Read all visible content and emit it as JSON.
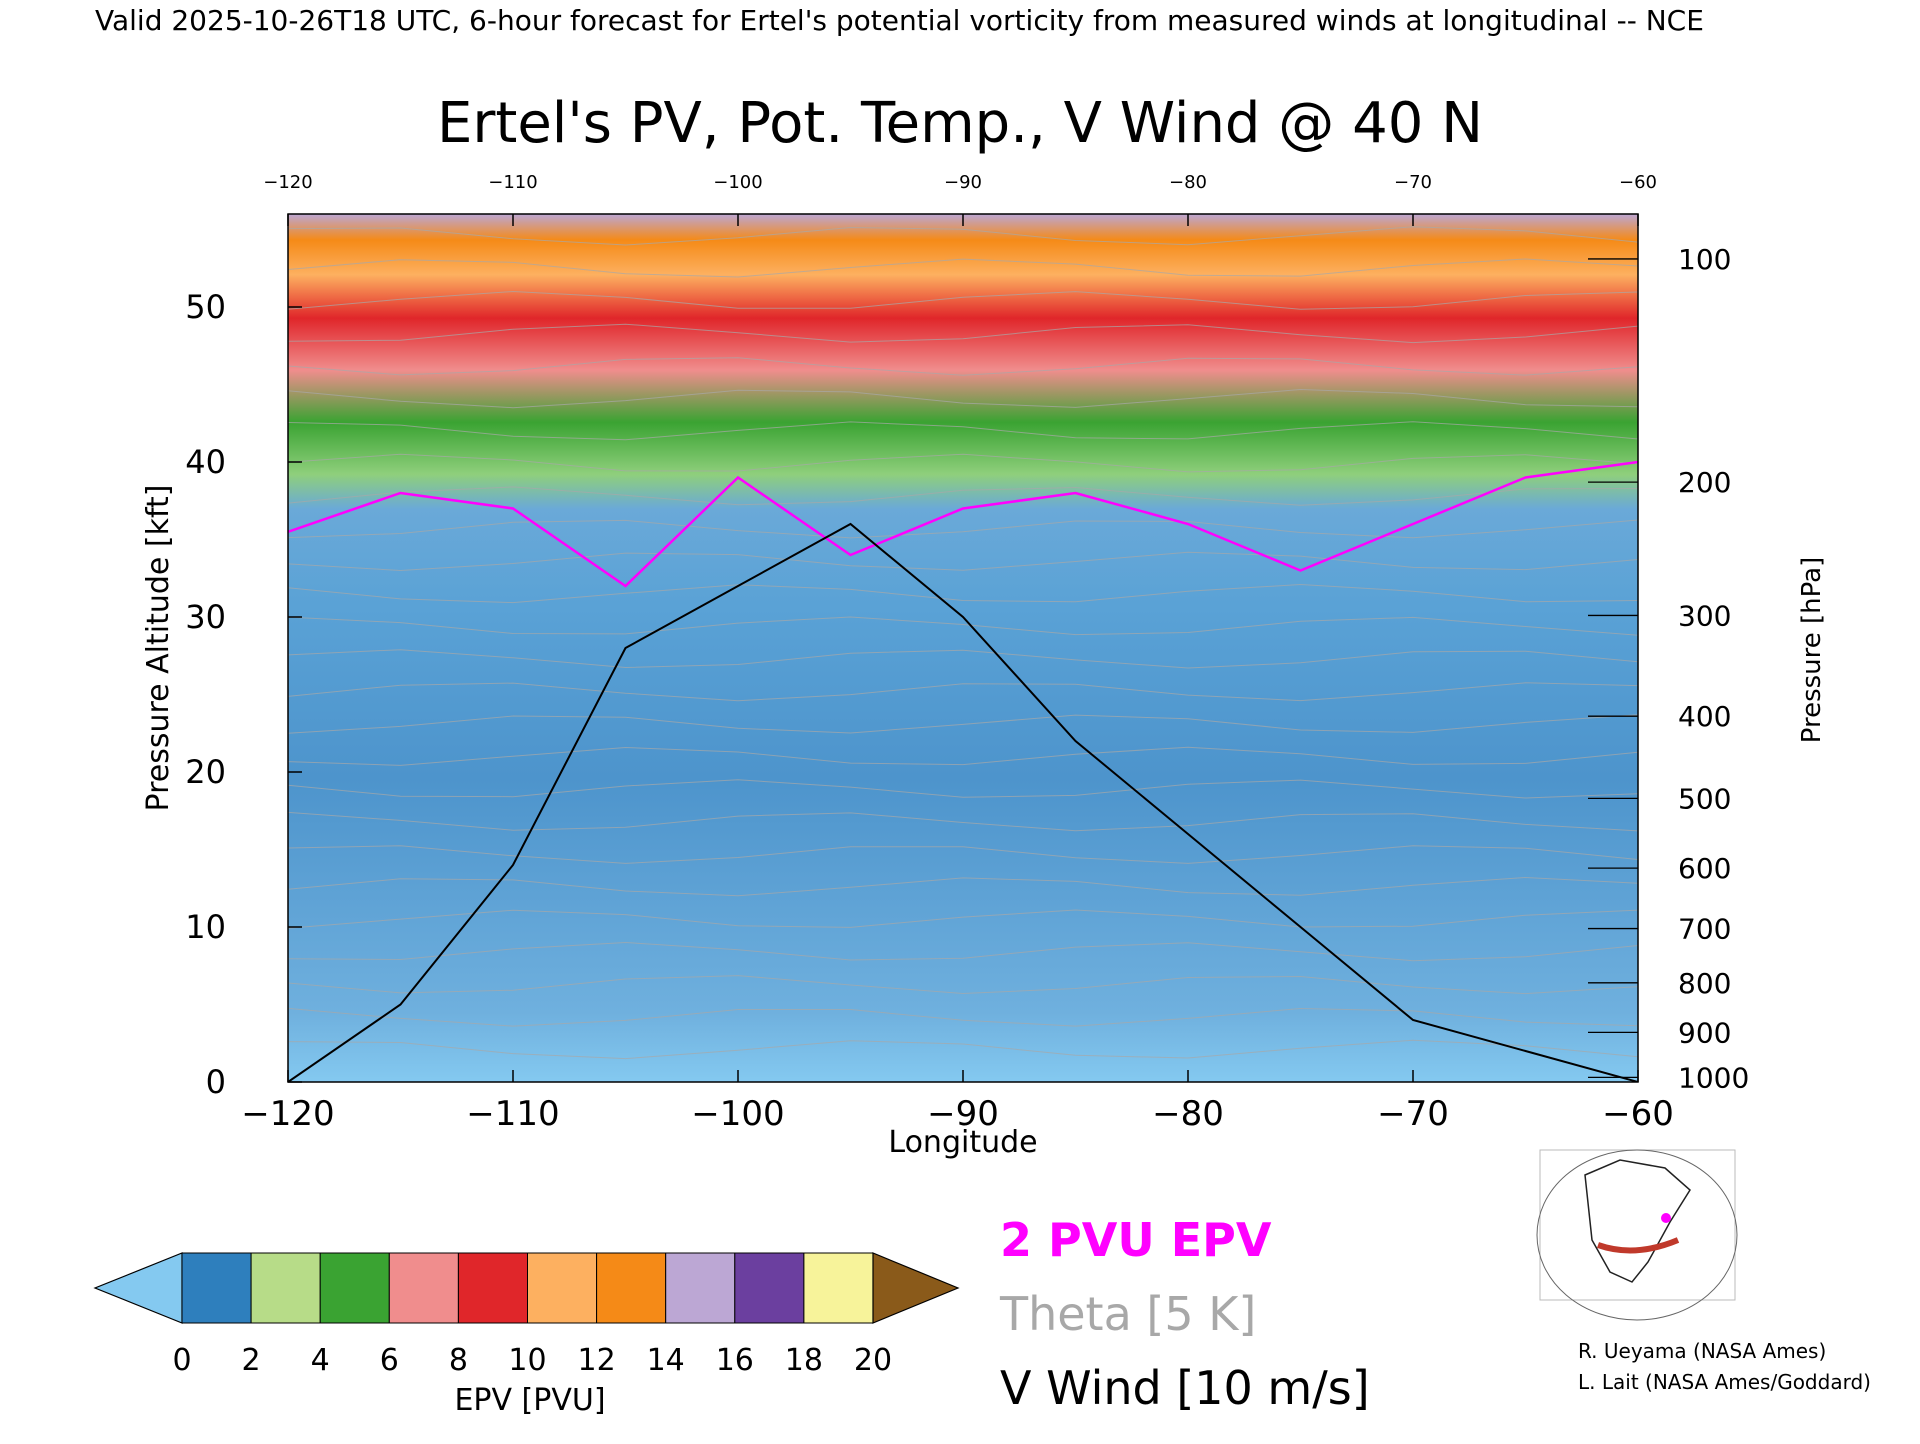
{
  "header": "Valid 2025-10-26T18 UTC, 6-hour forecast for Ertel's potential vorticity from measured winds at longitudinal -- NCE",
  "chart_data": {
    "type": "heatmap",
    "title": "Ertel's PV, Pot. Temp., V Wind @ 40 N",
    "xlabel": "Longitude",
    "ylabel_left": "Pressure Altitude [kft]",
    "ylabel_right": "Pressure [hPa]",
    "xlim": [
      -120,
      -60
    ],
    "ylim_kft": [
      0,
      56
    ],
    "x_ticks": [
      "−120",
      "−110",
      "−100",
      "−90",
      "−80",
      "−70",
      "−60"
    ],
    "x_tick_values": [
      -120,
      -110,
      -100,
      -90,
      -80,
      -70,
      -60
    ],
    "y_ticks_kft": [
      0,
      10,
      20,
      30,
      40,
      50
    ],
    "pressure_ticks": [
      {
        "label": "100",
        "kft": 53.1
      },
      {
        "label": "200",
        "kft": 38.7
      },
      {
        "label": "300",
        "kft": 30.1
      },
      {
        "label": "400",
        "kft": 23.6
      },
      {
        "label": "500",
        "kft": 18.3
      },
      {
        "label": "600",
        "kft": 13.8
      },
      {
        "label": "700",
        "kft": 9.9
      },
      {
        "label": "800",
        "kft": 6.4
      },
      {
        "label": "900",
        "kft": 3.2
      },
      {
        "label": "1000",
        "kft": 0.3
      }
    ],
    "colorbar": {
      "label": "EPV [PVU]",
      "ticks": [
        "0",
        "2",
        "4",
        "6",
        "8",
        "10",
        "12",
        "14",
        "16",
        "18",
        "20"
      ],
      "tick_values": [
        0,
        2,
        4,
        6,
        8,
        10,
        12,
        14,
        16,
        18,
        20
      ],
      "colors": [
        "#84c9f0",
        "#2e7fbd",
        "#b7dc88",
        "#3aa332",
        "#f08d8d",
        "#e0262a",
        "#fdb060",
        "#f58a17",
        "#bca7d4",
        "#6b3f9f",
        "#f7f39a",
        "#8a5a1a"
      ]
    },
    "series": [
      {
        "name": "2 PVU EPV",
        "color": "#ff00ff",
        "x": [
          -120,
          -115,
          -110,
          -105,
          -100,
          -95,
          -90,
          -85,
          -80,
          -75,
          -70,
          -65,
          -60
        ],
        "y": [
          35.5,
          38,
          37,
          32,
          39,
          34,
          37,
          38,
          36,
          33,
          36,
          39,
          40
        ]
      },
      {
        "name": "Theta [5 K]",
        "color": "#a0a0a0"
      },
      {
        "name": "V Wind [10 m/s]",
        "color": "#000000",
        "x": [
          -120,
          -115,
          -110,
          -105,
          -100,
          -95,
          -90,
          -85,
          -80,
          -75,
          -70,
          -65,
          -60
        ],
        "y_zero_contour_kft": [
          0,
          5,
          14,
          28,
          32,
          36,
          30,
          22,
          16,
          10,
          4,
          2,
          0
        ]
      }
    ]
  },
  "legend": {
    "pv": "2 PVU EPV",
    "theta": "Theta [5 K]",
    "wind": "V Wind [10 m/s]",
    "pv_color": "#ff00ff",
    "theta_color": "#a8a8a8"
  },
  "credits": {
    "line1": "R. Ueyama (NASA Ames)",
    "line2": "L. Lait (NASA Ames/Goddard)"
  },
  "inset_map": {
    "track_color": "#c0392b",
    "marker_color": "#ff00ff"
  }
}
